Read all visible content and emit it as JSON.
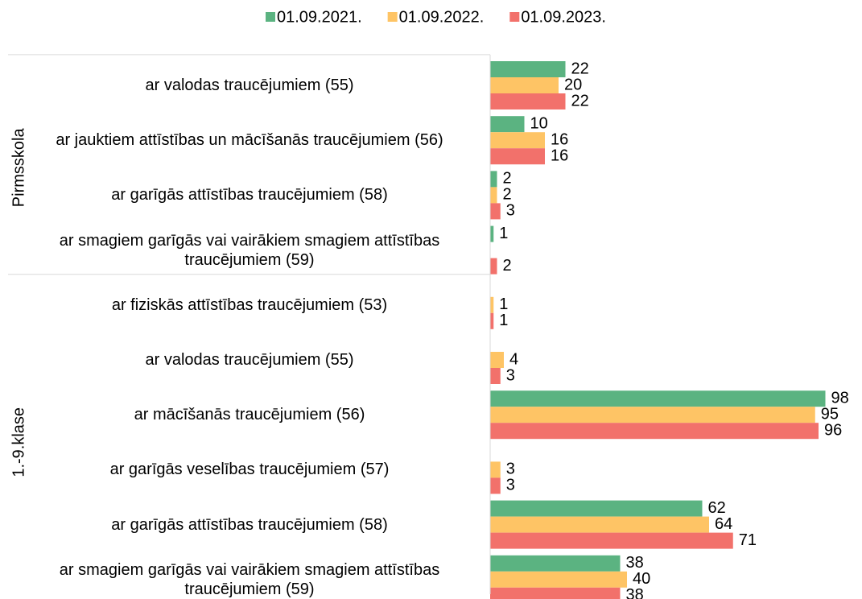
{
  "chart_data": {
    "type": "bar",
    "orientation": "horizontal",
    "groups": [
      {
        "label": "Pirmsskola",
        "categories": [
          "ar valodas traucējumiem (55)",
          "ar jauktiem attīstības un mācīšanās traucējumiem (56)",
          "ar garīgās attīstības traucējumiem (58)",
          "ar smagiem garīgās vai vairākiem smagiem attīstības traucējumiem (59)"
        ]
      },
      {
        "label": "1.-9.klase",
        "categories": [
          "ar fiziskās attīstības traucējumiem (53)",
          "ar valodas traucējumiem (55)",
          "ar mācīšanās traucējumiem (56)",
          "ar garīgās veselības traucējumiem (57)",
          "ar garīgās attīstības traucējumiem (58)",
          "ar smagiem garīgās vai vairākiem smagiem attīstības traucējumiem (59)"
        ]
      }
    ],
    "series": [
      {
        "name": "01.09.2021.",
        "color": "#5bb381",
        "values": [
          22,
          10,
          2,
          1,
          null,
          null,
          98,
          null,
          62,
          38
        ]
      },
      {
        "name": "01.09.2022.",
        "color": "#fec465",
        "values": [
          20,
          16,
          2,
          null,
          1,
          4,
          95,
          3,
          64,
          40
        ]
      },
      {
        "name": "01.09.2023.",
        "color": "#f2716b",
        "values": [
          22,
          16,
          3,
          2,
          1,
          3,
          96,
          3,
          71,
          38
        ]
      }
    ],
    "xlim": [
      0,
      100
    ],
    "legend": "top"
  }
}
